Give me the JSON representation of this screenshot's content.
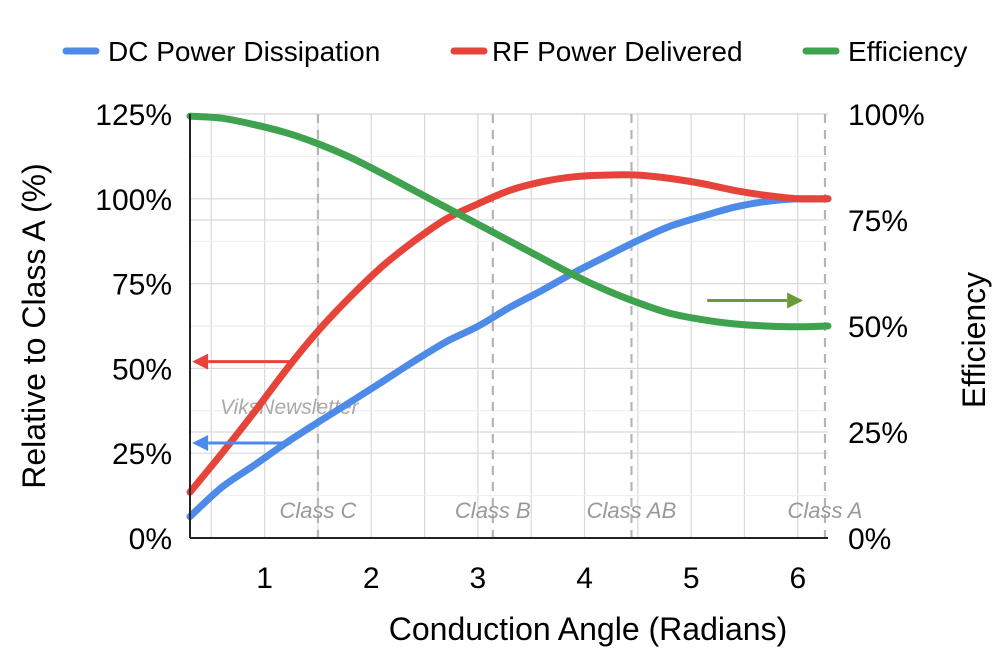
{
  "chart_data": {
    "type": "line",
    "xlabel": "Conduction Angle (Radians)",
    "ylabel": "Relative to Class A (%)",
    "y2label": "Efficiency",
    "xlim": [
      0.3,
      6.2832
    ],
    "ylim": [
      0,
      125
    ],
    "y2lim": [
      0,
      100
    ],
    "x_ticks": [
      "1",
      "2",
      "3",
      "4",
      "5",
      "6"
    ],
    "x_tick_values": [
      1,
      2,
      3,
      4,
      5,
      6
    ],
    "y_ticks": [
      "0%",
      "25%",
      "50%",
      "75%",
      "100%",
      "125%"
    ],
    "y_tick_values": [
      0,
      25,
      50,
      75,
      100,
      125
    ],
    "y2_ticks": [
      "0%",
      "25%",
      "50%",
      "75%",
      "100%"
    ],
    "y2_tick_values": [
      0,
      25,
      50,
      75,
      100
    ],
    "grid": true,
    "legend_position": "top",
    "x": [
      0.3,
      0.6,
      0.9,
      1.2,
      1.5,
      1.8,
      2.1,
      2.4,
      2.7,
      3.0,
      3.3,
      3.6,
      3.9,
      4.2,
      4.5,
      4.8,
      5.1,
      5.4,
      5.7,
      6.0,
      6.2832
    ],
    "series": [
      {
        "name": "DC Power Dissipation",
        "color": "#4e8ae8",
        "axis": "left",
        "values": [
          6.3,
          15.0,
          21.4,
          28.0,
          34.1,
          40.0,
          46.0,
          52.1,
          57.8,
          62.4,
          68.0,
          73.0,
          78.2,
          83.0,
          87.7,
          91.9,
          94.8,
          97.5,
          99.2,
          100.0,
          100.0
        ]
      },
      {
        "name": "RF Power Delivered",
        "color": "#e6443a",
        "axis": "left",
        "values": [
          13.5,
          25.0,
          37.0,
          49.5,
          61.0,
          71.0,
          80.0,
          87.5,
          94.0,
          98.5,
          102.5,
          105.0,
          106.5,
          107.0,
          107.0,
          106.0,
          104.5,
          102.5,
          101.0,
          100.0,
          100.0
        ]
      },
      {
        "name": "Efficiency",
        "color": "#3ea24e",
        "axis": "right",
        "values": [
          99.5,
          99.0,
          97.5,
          95.6,
          93.0,
          89.8,
          86.0,
          82.0,
          78.0,
          74.0,
          70.0,
          66.0,
          62.0,
          58.5,
          55.5,
          53.0,
          51.5,
          50.5,
          50.0,
          49.8,
          50.0
        ]
      }
    ],
    "class_markers": [
      {
        "label": "Class C",
        "x": 1.5
      },
      {
        "label": "Class B",
        "x": 3.14
      },
      {
        "label": "Class AB",
        "x": 4.44
      },
      {
        "label": "Class A",
        "x": 6.2832
      }
    ],
    "annotation_arrows": [
      {
        "color": "#e6443a",
        "direction": "left",
        "from_x": 1.25,
        "to_x": 0.32,
        "y": 52,
        "axis": "left"
      },
      {
        "color": "#4e8ae8",
        "direction": "left",
        "from_x": 1.25,
        "to_x": 0.32,
        "y": 28,
        "axis": "left"
      },
      {
        "color": "#6a9a3a",
        "direction": "right",
        "from_x": 5.15,
        "to_x": 6.05,
        "y": 56,
        "axis": "right"
      }
    ],
    "watermark": "ViksNewsletter"
  }
}
